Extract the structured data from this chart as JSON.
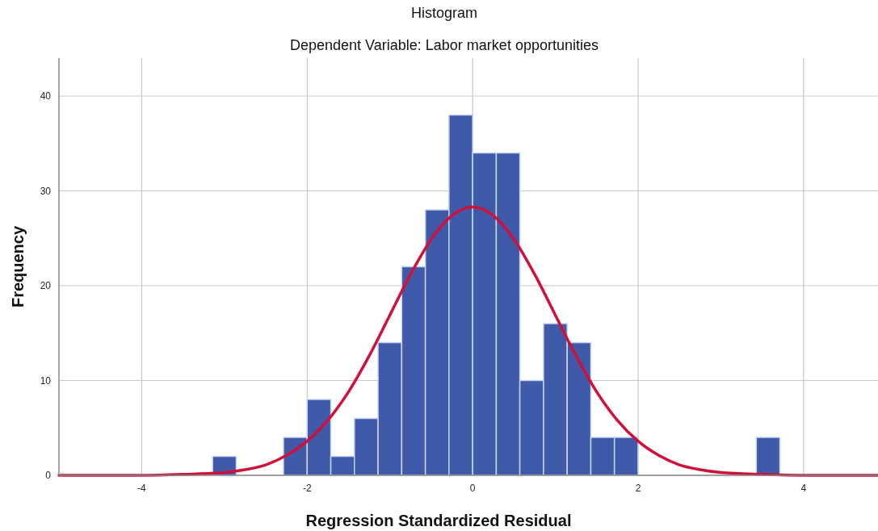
{
  "chart_data": {
    "type": "histogram",
    "title": "Histogram",
    "subtitle": "Dependent Variable: Labor market opportunities",
    "xlabel": "Regression Standardized Residual",
    "ylabel": "Frequency",
    "bins": [
      -3.143,
      -2.857,
      -2.571,
      -2.286,
      -2,
      -1.714,
      -1.429,
      -1.143,
      -0.857,
      -0.571,
      -0.286,
      0,
      0.286,
      0.571,
      0.857,
      1.143,
      1.429,
      1.714,
      2,
      2.286,
      2.571,
      2.857,
      3.143,
      3.429,
      3.714
    ],
    "values": [
      2,
      0,
      0,
      4,
      8,
      2,
      6,
      14,
      22,
      28,
      38,
      34,
      34,
      10,
      16,
      14,
      4,
      4,
      0,
      0,
      0,
      0,
      0,
      4
    ],
    "color": "#3f5aa8",
    "series": [
      {
        "type": "line",
        "color": "#d0103a",
        "x": [
          -5,
          -4.5,
          -4,
          -3.5,
          -3,
          -2.75,
          -2.5,
          -2.25,
          -2,
          -1.75,
          -1.5,
          -1.25,
          -1,
          -0.75,
          -0.5,
          -0.25,
          0,
          0.25,
          0.5,
          0.75,
          1,
          1.25,
          1.5,
          1.75,
          2,
          2.25,
          2.5,
          2.75,
          3,
          3.5,
          4,
          4.5,
          4.9
        ],
        "values": [
          0,
          0,
          0,
          0.1,
          0.3,
          0.6,
          1.1,
          2.1,
          3.6,
          5.8,
          8.8,
          12.6,
          16.9,
          21.2,
          24.9,
          27.4,
          28.3,
          27.4,
          24.9,
          21.2,
          16.9,
          12.6,
          8.8,
          5.8,
          3.6,
          2.1,
          1.1,
          0.6,
          0.3,
          0.1,
          0,
          0,
          0
        ]
      }
    ],
    "xlim": [
      -5,
      4.9
    ],
    "xticks": [
      -4,
      -2,
      0,
      2,
      4
    ],
    "ylim": [
      0,
      44
    ],
    "yticks": [
      0,
      10,
      20,
      30,
      40
    ],
    "grid": true
  }
}
